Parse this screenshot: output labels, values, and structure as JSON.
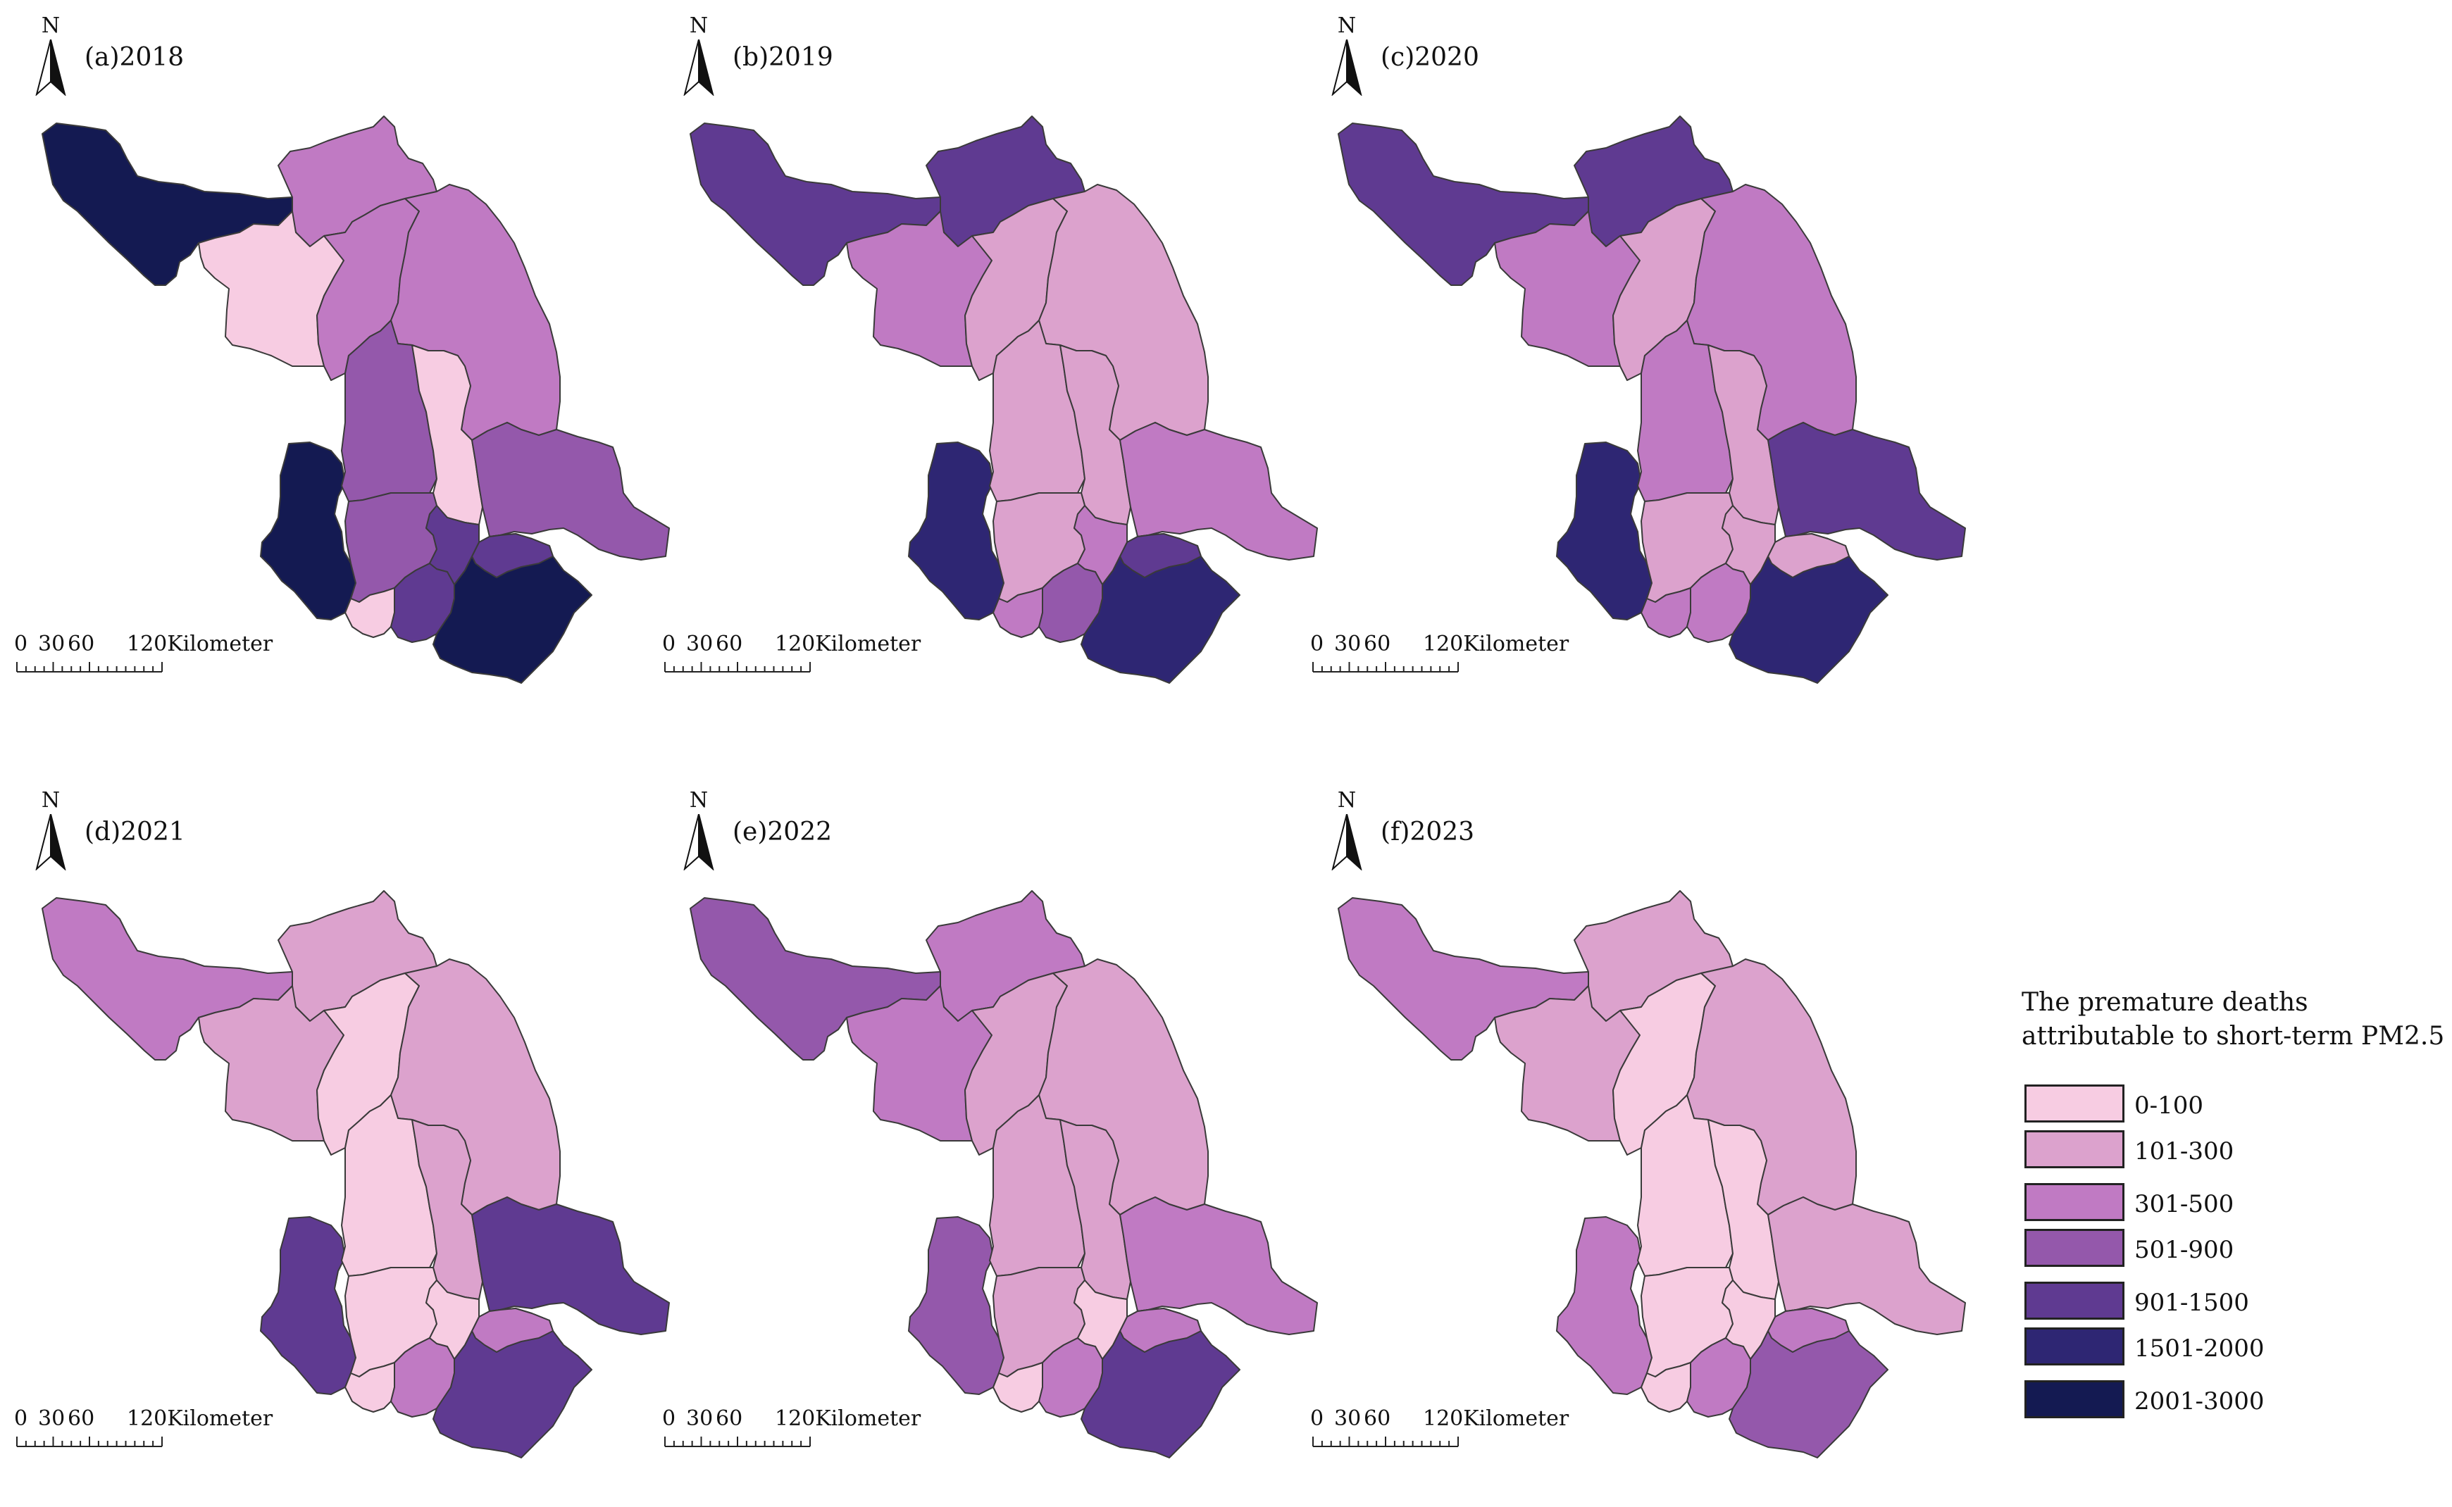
{
  "panels": [
    {
      "label": "(a)2018",
      "north": "N",
      "scale": [
        "0",
        "30",
        "60",
        "120Kilometer"
      ],
      "regions": {
        "xz": "2001-3000",
        "lyg": "301-500",
        "sq": "0-100",
        "ha": "301-500",
        "yc": "301-500",
        "nj": "2001-3000",
        "yz": "501-900",
        "tz": "0-100",
        "nt": "501-900",
        "zj": "501-900",
        "cz": "0-100",
        "wx": "901-1500",
        "sz": "2001-3000",
        "s1": "901-1500",
        "s2": "901-1500"
      }
    },
    {
      "label": "(b)2019",
      "north": "N",
      "scale": [
        "0",
        "30",
        "60",
        "120Kilometer"
      ],
      "regions": {
        "xz": "901-1500",
        "lyg": "901-1500",
        "sq": "301-500",
        "ha": "101-300",
        "yc": "101-300",
        "nj": "1501-2000",
        "yz": "101-300",
        "tz": "101-300",
        "nt": "301-500",
        "zj": "101-300",
        "cz": "301-500",
        "wx": "501-900",
        "sz": "1501-2000",
        "s1": "901-1500",
        "s2": "301-500"
      }
    },
    {
      "label": "(c)2020",
      "north": "N",
      "scale": [
        "0",
        "30",
        "60",
        "120Kilometer"
      ],
      "regions": {
        "xz": "901-1500",
        "lyg": "901-1500",
        "sq": "301-500",
        "ha": "101-300",
        "yc": "301-500",
        "nj": "1501-2000",
        "yz": "301-500",
        "tz": "101-300",
        "nt": "901-1500",
        "zj": "101-300",
        "cz": "301-500",
        "wx": "301-500",
        "sz": "1501-2000",
        "s1": "101-300",
        "s2": "101-300"
      }
    },
    {
      "label": "(d)2021",
      "north": "N",
      "scale": [
        "0",
        "30",
        "60",
        "120Kilometer"
      ],
      "regions": {
        "xz": "301-500",
        "lyg": "101-300",
        "sq": "101-300",
        "ha": "0-100",
        "yc": "101-300",
        "nj": "901-1500",
        "yz": "0-100",
        "tz": "101-300",
        "nt": "901-1500",
        "zj": "0-100",
        "cz": "0-100",
        "wx": "301-500",
        "sz": "901-1500",
        "s1": "301-500",
        "s2": "0-100"
      }
    },
    {
      "label": "(e)2022",
      "north": "N",
      "scale": [
        "0",
        "30",
        "60",
        "120Kilometer"
      ],
      "regions": {
        "xz": "501-900",
        "lyg": "301-500",
        "sq": "301-500",
        "ha": "101-300",
        "yc": "101-300",
        "nj": "501-900",
        "yz": "101-300",
        "tz": "101-300",
        "nt": "301-500",
        "zj": "101-300",
        "cz": "0-100",
        "wx": "301-500",
        "sz": "901-1500",
        "s1": "301-500",
        "s2": "0-100"
      }
    },
    {
      "label": "(f)2023",
      "north": "N",
      "scale": [
        "0",
        "30",
        "60",
        "120Kilometer"
      ],
      "regions": {
        "xz": "301-500",
        "lyg": "101-300",
        "sq": "101-300",
        "ha": "0-100",
        "yc": "101-300",
        "nj": "301-500",
        "yz": "0-100",
        "tz": "0-100",
        "nt": "101-300",
        "zj": "0-100",
        "cz": "0-100",
        "wx": "301-500",
        "sz": "501-900",
        "s1": "301-500",
        "s2": "0-100"
      }
    }
  ],
  "legend": {
    "title_line1": "The premature deaths",
    "title_line2": "attributable to short-term PM2.5",
    "classes": [
      {
        "label": "0-100",
        "color": "#f7cce2"
      },
      {
        "label": "101-300",
        "color": "#dca2cd"
      },
      {
        "label": "301-500",
        "color": "#c07ac3"
      },
      {
        "label": "501-900",
        "color": "#9458ab"
      },
      {
        "label": "901-1500",
        "color": "#5f3a91"
      },
      {
        "label": "1501-2000",
        "color": "#2e2673"
      },
      {
        "label": "2001-3000",
        "color": "#141a52"
      }
    ]
  }
}
